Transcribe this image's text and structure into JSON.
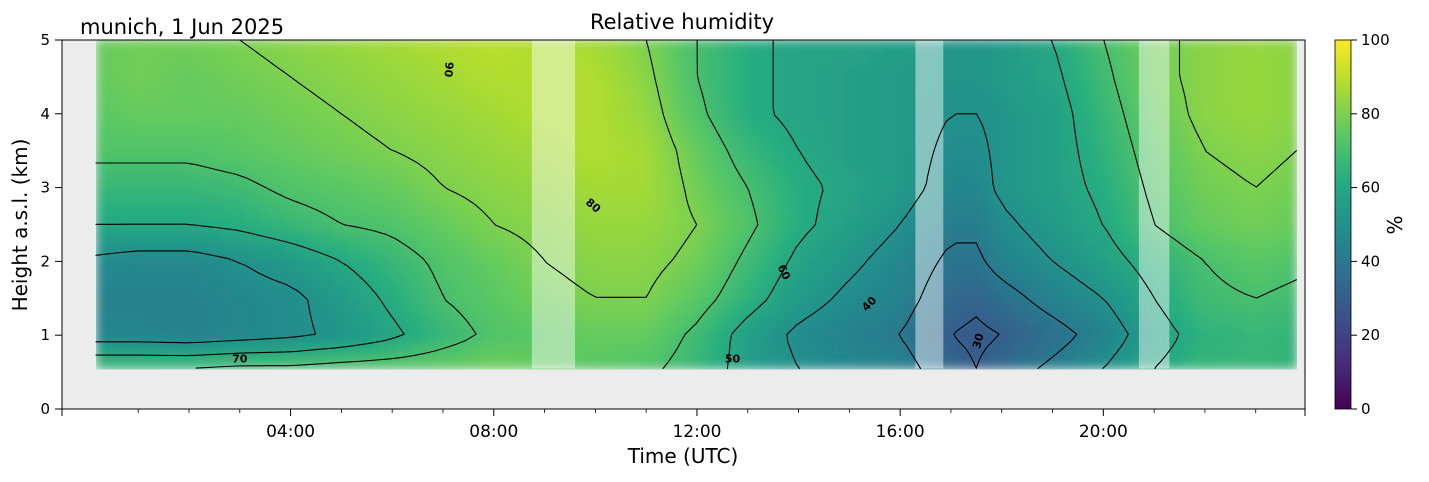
{
  "chart_data": {
    "type": "heatmap",
    "title": "Relative humidity",
    "subtitle": "munich, 1 Jun 2025",
    "xlabel": "Time (UTC)",
    "ylabel": "Height a.s.l. (km)",
    "colorbar_label": "%",
    "xlim_hours": [
      0,
      24
    ],
    "ylim_km": [
      0,
      5
    ],
    "zlim": [
      0,
      100
    ],
    "colormap": "viridis",
    "x_ticks": [
      "04:00",
      "08:00",
      "12:00",
      "16:00",
      "20:00"
    ],
    "y_ticks": [
      "0",
      "1",
      "2",
      "3",
      "4",
      "5"
    ],
    "colorbar_ticks": [
      "0",
      "20",
      "40",
      "60",
      "80",
      "100"
    ],
    "data_coverage": {
      "time_hours": [
        0.17,
        23.8
      ],
      "height_km": [
        0.55,
        5.0
      ]
    },
    "no_data_color": "#ececec",
    "masked_intervals_hours": [
      [
        8.75,
        9.6
      ],
      [
        16.3,
        16.85
      ],
      [
        20.7,
        21.3
      ]
    ],
    "contour_levels": [
      30,
      40,
      50,
      60,
      70,
      80,
      90
    ],
    "contour_labels": [
      {
        "text": "70",
        "time_h": 3.0,
        "height_km": 0.67,
        "rotation_deg": 0
      },
      {
        "text": "90",
        "time_h": 7.1,
        "height_km": 4.6,
        "rotation_deg": 95
      },
      {
        "text": "80",
        "time_h": 9.95,
        "height_km": 2.75,
        "rotation_deg": 40
      },
      {
        "text": "50",
        "time_h": 12.7,
        "height_km": 0.67,
        "rotation_deg": 0
      },
      {
        "text": "60",
        "time_h": 13.7,
        "height_km": 1.85,
        "rotation_deg": 65
      },
      {
        "text": "40",
        "time_h": 15.4,
        "height_km": 1.42,
        "rotation_deg": -45
      },
      {
        "text": "30",
        "time_h": 17.55,
        "height_km": 0.92,
        "rotation_deg": -75
      }
    ],
    "humidity_profile": {
      "times_h": [
        0.17,
        1,
        2,
        3,
        4,
        5,
        6,
        7,
        8,
        9,
        10,
        11,
        12,
        13,
        14,
        15,
        16,
        17,
        17.5,
        18,
        19,
        20,
        21,
        22,
        23,
        23.8
      ],
      "heights_km": [
        0.55,
        1.0,
        1.5,
        2.0,
        2.5,
        3.0,
        3.5,
        4.0,
        4.5,
        5.0
      ],
      "rh_percent": [
        [
          70,
          70,
          70,
          72,
          72,
          74,
          75,
          76,
          78,
          76,
          74,
          72,
          66,
          56,
          50,
          46,
          44,
          34,
          30,
          35,
          42,
          50,
          60,
          66,
          66,
          65
        ],
        [
          45,
          45,
          44,
          46,
          48,
          52,
          58,
          66,
          72,
          74,
          76,
          76,
          68,
          56,
          48,
          44,
          40,
          30,
          28,
          30,
          36,
          44,
          56,
          64,
          66,
          65
        ],
        [
          44,
          44,
          44,
          46,
          48,
          54,
          62,
          70,
          74,
          78,
          80,
          80,
          74,
          64,
          54,
          48,
          44,
          34,
          32,
          36,
          44,
          50,
          60,
          68,
          70,
          68
        ],
        [
          48,
          46,
          46,
          50,
          54,
          60,
          66,
          72,
          76,
          80,
          82,
          82,
          78,
          68,
          58,
          52,
          46,
          38,
          38,
          44,
          50,
          56,
          64,
          70,
          74,
          72
        ],
        [
          60,
          60,
          60,
          62,
          66,
          70,
          72,
          76,
          80,
          82,
          84,
          84,
          80,
          72,
          62,
          56,
          50,
          42,
          42,
          48,
          54,
          60,
          70,
          76,
          78,
          76
        ],
        [
          66,
          66,
          66,
          68,
          72,
          74,
          76,
          80,
          82,
          84,
          86,
          86,
          78,
          70,
          62,
          58,
          54,
          46,
          46,
          52,
          56,
          62,
          72,
          78,
          80,
          78
        ],
        [
          72,
          72,
          72,
          74,
          76,
          78,
          80,
          82,
          84,
          86,
          88,
          86,
          76,
          66,
          60,
          56,
          54,
          48,
          48,
          52,
          56,
          64,
          74,
          80,
          82,
          80
        ],
        [
          74,
          76,
          76,
          76,
          78,
          80,
          82,
          84,
          86,
          88,
          88,
          84,
          72,
          62,
          58,
          56,
          54,
          50,
          50,
          52,
          56,
          66,
          76,
          82,
          84,
          82
        ],
        [
          76,
          78,
          76,
          78,
          80,
          82,
          84,
          86,
          88,
          88,
          88,
          82,
          70,
          62,
          58,
          56,
          54,
          52,
          52,
          54,
          58,
          68,
          78,
          82,
          84,
          82
        ],
        [
          76,
          78,
          78,
          80,
          82,
          84,
          86,
          88,
          90,
          88,
          86,
          80,
          70,
          62,
          58,
          58,
          56,
          52,
          52,
          54,
          60,
          70,
          78,
          82,
          84,
          82
        ]
      ]
    }
  }
}
